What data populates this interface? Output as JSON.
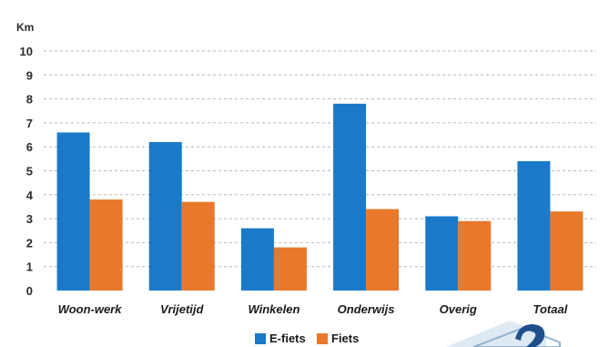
{
  "chart_data": {
    "type": "bar",
    "unit_label": "Km",
    "categories": [
      "Woon-werk",
      "Vrijetijd",
      "Winkelen",
      "Onderwijs",
      "Overig",
      "Totaal"
    ],
    "series": [
      {
        "name": "E-fiets",
        "color": "#1a7ac9",
        "values": [
          6.6,
          6.2,
          2.6,
          7.8,
          3.1,
          5.4
        ]
      },
      {
        "name": "Fiets",
        "color": "#e8782a",
        "values": [
          3.8,
          3.7,
          1.8,
          3.4,
          2.9,
          3.3
        ]
      }
    ],
    "ylim": [
      0,
      10
    ],
    "yticks": [
      "0",
      "1",
      "2",
      "3",
      "4",
      "5",
      "6",
      "7",
      "8",
      "9",
      "10"
    ],
    "grid": true,
    "legend_position": "bottom-center"
  }
}
